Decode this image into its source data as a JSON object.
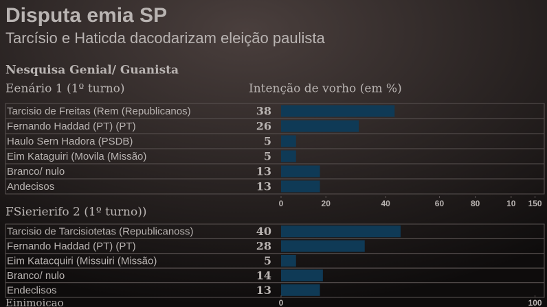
{
  "title": "Disputa emia SP",
  "subtitle": "Tarcísio e Haticda  dacodarizam eleição paulista",
  "source": "Nesquisa Genial/ Guanista",
  "axis_label": "Intenção de vorho (em %)",
  "footer": "Einimoicao",
  "chart_data": [
    {
      "type": "hbar",
      "title": "Eenário  1 (1º turno)",
      "categories": [
        "Tarcisio de Freitas (Rem (Republicanos)",
        "Fernando Haddad (PT)  (PT)",
        "Haulo Sern  Hadora (PSDB)",
        "Eim Kataguiri (Movila (Missão)",
        "Branco/ nulo",
        "Andecisos"
      ],
      "values": [
        38,
        26,
        5,
        5,
        13,
        13
      ],
      "color": "#0f3a56",
      "xlim": [
        0,
        89
      ],
      "xticks": [
        0,
        {
          "value": 15,
          "label": "20"
        },
        {
          "value": 35,
          "label": "40"
        },
        {
          "value": 53,
          "label": "60"
        },
        {
          "value": 65,
          "label": "80"
        },
        {
          "value": 77,
          "label": "10"
        },
        {
          "value": 85,
          "label": "150"
        }
      ]
    },
    {
      "type": "hbar",
      "title": "FSierierifo 2 (1º  turno))",
      "categories": [
        "Tarcisio de Tarcisiotetas (Republicanoss)",
        "Fernando Haddad (PT)   (PT)",
        "Eim Katacquiri (Missuiri (Missão)",
        "Branco/ nulo",
        "Endeclisos"
      ],
      "values": [
        40,
        28,
        5,
        14,
        13
      ],
      "color": "#0f3a56",
      "xlim": [
        0,
        89
      ],
      "xticks": [
        0,
        {
          "value": 85,
          "label": "100"
        }
      ]
    }
  ]
}
